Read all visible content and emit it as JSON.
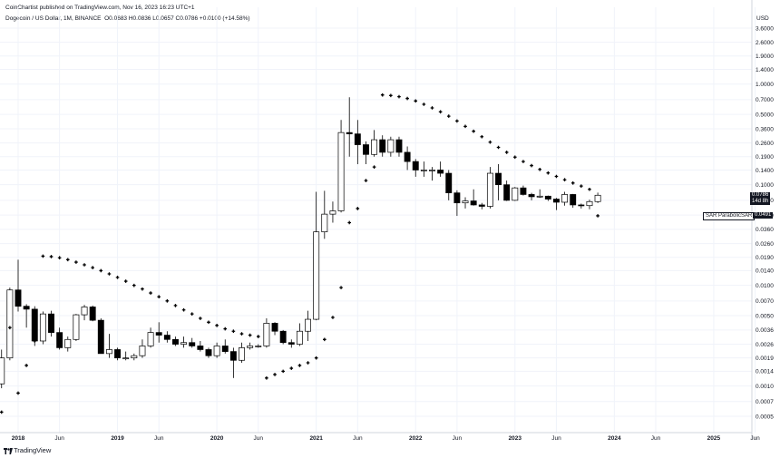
{
  "header": {
    "publisher": "CoinChartist published on TradingView.com, Nov 16, 2023 16:23 UTC+1",
    "symbol": "Dogecoin / US Dollar, 1M, BINANCE",
    "ohlc": "O0.0683 H0.0836 L0.0657 C0.0786 +0.0100 (+14.58%)",
    "currency": "USD"
  },
  "footer": {
    "brand": "TradingView"
  },
  "price_tag": {
    "value": "0.0786",
    "countdown": "14d 8h"
  },
  "sar_tag": {
    "label": "SAR ParabolicSAR",
    "value": "0.0491"
  },
  "colors": {
    "up_fill": "#ffffff",
    "down_fill": "#000000",
    "wick": "#000000",
    "sar": "#000000",
    "grid": "#f0f3fa"
  },
  "chart_data": {
    "type": "candlestick",
    "title": "Dogecoin / US Dollar, 1M, BINANCE",
    "yscale": "log",
    "ylim": [
      0.00035,
      4.5
    ],
    "x_range": [
      "2017-11",
      "2025-07"
    ],
    "y_ticks": [
      "3.6000",
      "2.6000",
      "1.9000",
      "1.4000",
      "1.0000",
      "0.7000",
      "0.5000",
      "0.3600",
      "0.2600",
      "0.1900",
      "0.1400",
      "0.1000",
      "0.0700",
      "0.0500",
      "0.0360",
      "0.0260",
      "0.0190",
      "0.0140",
      "0.0100",
      "0.0070",
      "0.0050",
      "0.0036",
      "0.0026",
      "0.0019",
      "0.0014",
      "0.0010",
      "0.0007",
      "0.0005"
    ],
    "x_ticks": [
      {
        "label": "2018",
        "date": "2018-01",
        "major": true
      },
      {
        "label": "Jun",
        "date": "2018-06",
        "major": false
      },
      {
        "label": "2019",
        "date": "2019-01",
        "major": true
      },
      {
        "label": "Jun",
        "date": "2019-06",
        "major": false
      },
      {
        "label": "2020",
        "date": "2020-01",
        "major": true
      },
      {
        "label": "Jun",
        "date": "2020-06",
        "major": false
      },
      {
        "label": "2021",
        "date": "2021-01",
        "major": true
      },
      {
        "label": "Jun",
        "date": "2021-06",
        "major": false
      },
      {
        "label": "2022",
        "date": "2022-01",
        "major": true
      },
      {
        "label": "Jun",
        "date": "2022-06",
        "major": false
      },
      {
        "label": "2023",
        "date": "2023-01",
        "major": true
      },
      {
        "label": "Jun",
        "date": "2023-06",
        "major": false
      },
      {
        "label": "2024",
        "date": "2024-01",
        "major": true
      },
      {
        "label": "Jun",
        "date": "2024-06",
        "major": false
      },
      {
        "label": "2025",
        "date": "2025-01",
        "major": true
      },
      {
        "label": "Jun",
        "date": "2025-06",
        "major": false
      }
    ],
    "candles": [
      {
        "date": "2017-11",
        "o": 0.00105,
        "h": 0.0023,
        "l": 0.00095,
        "c": 0.0019
      },
      {
        "date": "2017-12",
        "o": 0.0019,
        "h": 0.0095,
        "l": 0.0018,
        "c": 0.009
      },
      {
        "date": "2018-01",
        "o": 0.009,
        "h": 0.018,
        "l": 0.0055,
        "c": 0.0062
      },
      {
        "date": "2018-02",
        "o": 0.0062,
        "h": 0.0065,
        "l": 0.0038,
        "c": 0.0058
      },
      {
        "date": "2018-03",
        "o": 0.0058,
        "h": 0.0062,
        "l": 0.0025,
        "c": 0.0028
      },
      {
        "date": "2018-04",
        "o": 0.0028,
        "h": 0.0055,
        "l": 0.0026,
        "c": 0.0052
      },
      {
        "date": "2018-05",
        "o": 0.0052,
        "h": 0.0056,
        "l": 0.0031,
        "c": 0.0034
      },
      {
        "date": "2018-06",
        "o": 0.0034,
        "h": 0.0038,
        "l": 0.0023,
        "c": 0.0024
      },
      {
        "date": "2018-07",
        "o": 0.0024,
        "h": 0.0031,
        "l": 0.0022,
        "c": 0.0029
      },
      {
        "date": "2018-08",
        "o": 0.0029,
        "h": 0.0052,
        "l": 0.0028,
        "c": 0.0051
      },
      {
        "date": "2018-09",
        "o": 0.0051,
        "h": 0.0064,
        "l": 0.0045,
        "c": 0.0061
      },
      {
        "date": "2018-10",
        "o": 0.0061,
        "h": 0.0063,
        "l": 0.0044,
        "c": 0.0045
      },
      {
        "date": "2018-11",
        "o": 0.0045,
        "h": 0.0047,
        "l": 0.0021,
        "c": 0.0021
      },
      {
        "date": "2018-12",
        "o": 0.0021,
        "h": 0.0033,
        "l": 0.0019,
        "c": 0.0023
      },
      {
        "date": "2019-01",
        "o": 0.0023,
        "h": 0.0024,
        "l": 0.0018,
        "c": 0.0019
      },
      {
        "date": "2019-02",
        "o": 0.0019,
        "h": 0.0022,
        "l": 0.0018,
        "c": 0.0019
      },
      {
        "date": "2019-03",
        "o": 0.0019,
        "h": 0.0021,
        "l": 0.0018,
        "c": 0.002
      },
      {
        "date": "2019-04",
        "o": 0.002,
        "h": 0.0029,
        "l": 0.0019,
        "c": 0.0025
      },
      {
        "date": "2019-05",
        "o": 0.0025,
        "h": 0.0038,
        "l": 0.0024,
        "c": 0.0034
      },
      {
        "date": "2019-06",
        "o": 0.0034,
        "h": 0.0043,
        "l": 0.0027,
        "c": 0.0032
      },
      {
        "date": "2019-07",
        "o": 0.0032,
        "h": 0.0035,
        "l": 0.0027,
        "c": 0.0029
      },
      {
        "date": "2019-08",
        "o": 0.0029,
        "h": 0.0031,
        "l": 0.0025,
        "c": 0.0026
      },
      {
        "date": "2019-09",
        "o": 0.0026,
        "h": 0.0031,
        "l": 0.0024,
        "c": 0.0027
      },
      {
        "date": "2019-10",
        "o": 0.0027,
        "h": 0.003,
        "l": 0.0024,
        "c": 0.0025
      },
      {
        "date": "2019-11",
        "o": 0.0025,
        "h": 0.0028,
        "l": 0.0022,
        "c": 0.0023
      },
      {
        "date": "2019-12",
        "o": 0.0023,
        "h": 0.0024,
        "l": 0.0019,
        "c": 0.002
      },
      {
        "date": "2020-01",
        "o": 0.002,
        "h": 0.0027,
        "l": 0.0019,
        "c": 0.0025
      },
      {
        "date": "2020-02",
        "o": 0.0025,
        "h": 0.0029,
        "l": 0.0021,
        "c": 0.0022
      },
      {
        "date": "2020-03",
        "o": 0.0022,
        "h": 0.0024,
        "l": 0.0012,
        "c": 0.0018
      },
      {
        "date": "2020-04",
        "o": 0.0018,
        "h": 0.0027,
        "l": 0.0017,
        "c": 0.0024
      },
      {
        "date": "2020-05",
        "o": 0.0024,
        "h": 0.0027,
        "l": 0.0023,
        "c": 0.0025
      },
      {
        "date": "2020-06",
        "o": 0.0025,
        "h": 0.0026,
        "l": 0.0024,
        "c": 0.0025
      },
      {
        "date": "2020-07",
        "o": 0.0025,
        "h": 0.0047,
        "l": 0.0024,
        "c": 0.0042
      },
      {
        "date": "2020-08",
        "o": 0.0042,
        "h": 0.0043,
        "l": 0.0032,
        "c": 0.0035
      },
      {
        "date": "2020-09",
        "o": 0.0035,
        "h": 0.0036,
        "l": 0.0026,
        "c": 0.0027
      },
      {
        "date": "2020-10",
        "o": 0.0027,
        "h": 0.0029,
        "l": 0.0024,
        "c": 0.0026
      },
      {
        "date": "2020-11",
        "o": 0.0026,
        "h": 0.0042,
        "l": 0.0025,
        "c": 0.0035
      },
      {
        "date": "2020-12",
        "o": 0.0035,
        "h": 0.0056,
        "l": 0.0028,
        "c": 0.0046
      },
      {
        "date": "2021-01",
        "o": 0.0046,
        "h": 0.085,
        "l": 0.0045,
        "c": 0.034
      },
      {
        "date": "2021-02",
        "o": 0.034,
        "h": 0.087,
        "l": 0.029,
        "c": 0.051
      },
      {
        "date": "2021-03",
        "o": 0.051,
        "h": 0.068,
        "l": 0.042,
        "c": 0.055
      },
      {
        "date": "2021-04",
        "o": 0.055,
        "h": 0.44,
        "l": 0.053,
        "c": 0.33
      },
      {
        "date": "2021-05",
        "o": 0.33,
        "h": 0.74,
        "l": 0.19,
        "c": 0.32
      },
      {
        "date": "2021-06",
        "o": 0.32,
        "h": 0.44,
        "l": 0.16,
        "c": 0.25
      },
      {
        "date": "2021-07",
        "o": 0.25,
        "h": 0.27,
        "l": 0.16,
        "c": 0.2
      },
      {
        "date": "2021-08",
        "o": 0.2,
        "h": 0.35,
        "l": 0.19,
        "c": 0.28
      },
      {
        "date": "2021-09",
        "o": 0.28,
        "h": 0.31,
        "l": 0.19,
        "c": 0.21
      },
      {
        "date": "2021-10",
        "o": 0.21,
        "h": 0.3,
        "l": 0.19,
        "c": 0.28
      },
      {
        "date": "2021-11",
        "o": 0.28,
        "h": 0.3,
        "l": 0.19,
        "c": 0.21
      },
      {
        "date": "2021-12",
        "o": 0.21,
        "h": 0.24,
        "l": 0.14,
        "c": 0.17
      },
      {
        "date": "2022-01",
        "o": 0.17,
        "h": 0.18,
        "l": 0.12,
        "c": 0.14
      },
      {
        "date": "2022-02",
        "o": 0.14,
        "h": 0.17,
        "l": 0.12,
        "c": 0.14
      },
      {
        "date": "2022-03",
        "o": 0.14,
        "h": 0.15,
        "l": 0.11,
        "c": 0.14
      },
      {
        "date": "2022-04",
        "o": 0.14,
        "h": 0.17,
        "l": 0.12,
        "c": 0.13
      },
      {
        "date": "2022-05",
        "o": 0.13,
        "h": 0.14,
        "l": 0.07,
        "c": 0.083
      },
      {
        "date": "2022-06",
        "o": 0.083,
        "h": 0.088,
        "l": 0.049,
        "c": 0.066
      },
      {
        "date": "2022-07",
        "o": 0.066,
        "h": 0.075,
        "l": 0.058,
        "c": 0.069
      },
      {
        "date": "2022-08",
        "o": 0.069,
        "h": 0.09,
        "l": 0.062,
        "c": 0.063
      },
      {
        "date": "2022-09",
        "o": 0.063,
        "h": 0.066,
        "l": 0.057,
        "c": 0.061
      },
      {
        "date": "2022-10",
        "o": 0.061,
        "h": 0.15,
        "l": 0.058,
        "c": 0.13
      },
      {
        "date": "2022-11",
        "o": 0.13,
        "h": 0.16,
        "l": 0.07,
        "c": 0.1
      },
      {
        "date": "2022-12",
        "o": 0.1,
        "h": 0.11,
        "l": 0.069,
        "c": 0.07
      },
      {
        "date": "2023-01",
        "o": 0.07,
        "h": 0.095,
        "l": 0.069,
        "c": 0.093
      },
      {
        "date": "2023-02",
        "o": 0.093,
        "h": 0.098,
        "l": 0.078,
        "c": 0.08
      },
      {
        "date": "2023-03",
        "o": 0.08,
        "h": 0.083,
        "l": 0.07,
        "c": 0.076
      },
      {
        "date": "2023-04",
        "o": 0.076,
        "h": 0.09,
        "l": 0.074,
        "c": 0.077
      },
      {
        "date": "2023-05",
        "o": 0.077,
        "h": 0.078,
        "l": 0.069,
        "c": 0.072
      },
      {
        "date": "2023-06",
        "o": 0.072,
        "h": 0.074,
        "l": 0.056,
        "c": 0.067
      },
      {
        "date": "2023-07",
        "o": 0.067,
        "h": 0.085,
        "l": 0.062,
        "c": 0.08
      },
      {
        "date": "2023-08",
        "o": 0.08,
        "h": 0.081,
        "l": 0.059,
        "c": 0.063
      },
      {
        "date": "2023-09",
        "o": 0.063,
        "h": 0.065,
        "l": 0.058,
        "c": 0.062
      },
      {
        "date": "2023-10",
        "o": 0.062,
        "h": 0.071,
        "l": 0.057,
        "c": 0.068
      },
      {
        "date": "2023-11",
        "o": 0.068,
        "h": 0.0836,
        "l": 0.0657,
        "c": 0.0786
      }
    ],
    "sar_points": [
      {
        "date": "2017-11",
        "v": 0.00055
      },
      {
        "date": "2017-12",
        "v": 0.0038
      },
      {
        "date": "2018-01",
        "v": 0.00085
      },
      {
        "date": "2018-02",
        "v": 0.0016
      },
      {
        "date": "2018-03",
        "v": 0.0028
      },
      {
        "date": "2018-04",
        "v": 0.0195
      },
      {
        "date": "2018-05",
        "v": 0.0193
      },
      {
        "date": "2018-06",
        "v": 0.0188
      },
      {
        "date": "2018-07",
        "v": 0.018
      },
      {
        "date": "2018-08",
        "v": 0.017
      },
      {
        "date": "2018-09",
        "v": 0.016
      },
      {
        "date": "2018-10",
        "v": 0.015
      },
      {
        "date": "2018-11",
        "v": 0.014
      },
      {
        "date": "2018-12",
        "v": 0.013
      },
      {
        "date": "2019-01",
        "v": 0.012
      },
      {
        "date": "2019-02",
        "v": 0.011
      },
      {
        "date": "2019-03",
        "v": 0.01
      },
      {
        "date": "2019-04",
        "v": 0.0092
      },
      {
        "date": "2019-05",
        "v": 0.0084
      },
      {
        "date": "2019-06",
        "v": 0.0077
      },
      {
        "date": "2019-07",
        "v": 0.007
      },
      {
        "date": "2019-08",
        "v": 0.0063
      },
      {
        "date": "2019-09",
        "v": 0.0057
      },
      {
        "date": "2019-10",
        "v": 0.0052
      },
      {
        "date": "2019-11",
        "v": 0.0047
      },
      {
        "date": "2019-12",
        "v": 0.0043
      },
      {
        "date": "2020-01",
        "v": 0.004
      },
      {
        "date": "2020-02",
        "v": 0.0037
      },
      {
        "date": "2020-03",
        "v": 0.0035
      },
      {
        "date": "2020-04",
        "v": 0.0033
      },
      {
        "date": "2020-05",
        "v": 0.0032
      },
      {
        "date": "2020-06",
        "v": 0.0031
      },
      {
        "date": "2020-07",
        "v": 0.0012
      },
      {
        "date": "2020-08",
        "v": 0.0013
      },
      {
        "date": "2020-09",
        "v": 0.0014
      },
      {
        "date": "2020-10",
        "v": 0.0015
      },
      {
        "date": "2020-11",
        "v": 0.0016
      },
      {
        "date": "2020-12",
        "v": 0.0017
      },
      {
        "date": "2021-01",
        "v": 0.0019
      },
      {
        "date": "2021-02",
        "v": 0.0029
      },
      {
        "date": "2021-03",
        "v": 0.0048
      },
      {
        "date": "2021-04",
        "v": 0.0095
      },
      {
        "date": "2021-05",
        "v": 0.042
      },
      {
        "date": "2021-06",
        "v": 0.058
      },
      {
        "date": "2021-07",
        "v": 0.11
      },
      {
        "date": "2021-08",
        "v": 0.15
      },
      {
        "date": "2021-09",
        "v": 0.78
      },
      {
        "date": "2021-10",
        "v": 0.77
      },
      {
        "date": "2021-11",
        "v": 0.75
      },
      {
        "date": "2021-12",
        "v": 0.72
      },
      {
        "date": "2022-01",
        "v": 0.68
      },
      {
        "date": "2022-02",
        "v": 0.63
      },
      {
        "date": "2022-03",
        "v": 0.58
      },
      {
        "date": "2022-04",
        "v": 0.53
      },
      {
        "date": "2022-05",
        "v": 0.48
      },
      {
        "date": "2022-06",
        "v": 0.43
      },
      {
        "date": "2022-07",
        "v": 0.38
      },
      {
        "date": "2022-08",
        "v": 0.34
      },
      {
        "date": "2022-09",
        "v": 0.3
      },
      {
        "date": "2022-10",
        "v": 0.265
      },
      {
        "date": "2022-11",
        "v": 0.235
      },
      {
        "date": "2022-12",
        "v": 0.21
      },
      {
        "date": "2023-01",
        "v": 0.188
      },
      {
        "date": "2023-02",
        "v": 0.17
      },
      {
        "date": "2023-03",
        "v": 0.155
      },
      {
        "date": "2023-04",
        "v": 0.142
      },
      {
        "date": "2023-05",
        "v": 0.131
      },
      {
        "date": "2023-06",
        "v": 0.121
      },
      {
        "date": "2023-07",
        "v": 0.112
      },
      {
        "date": "2023-08",
        "v": 0.104
      },
      {
        "date": "2023-09",
        "v": 0.097
      },
      {
        "date": "2023-10",
        "v": 0.09
      },
      {
        "date": "2023-11",
        "v": 0.0491
      }
    ]
  }
}
